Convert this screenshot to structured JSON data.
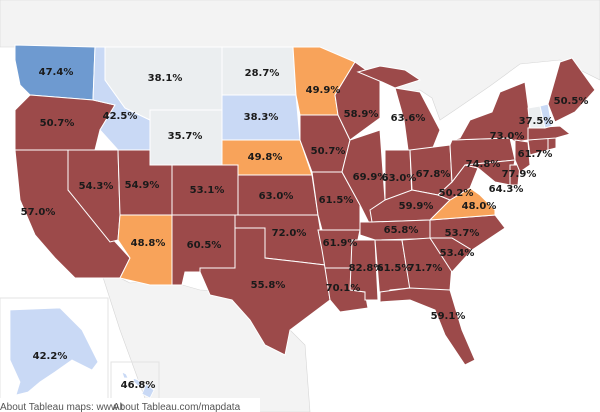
{
  "colors": {
    "dark_red": "#9c4a4a",
    "orange": "#f8a35a",
    "light_gray": "#ebeef0",
    "light_blue": "#c9d9f5",
    "mid_blue": "#6e9ad0",
    "border": "#ffffff",
    "neighbor": "#f3f3f3"
  },
  "states": [
    {
      "code": "WA",
      "value": "47.4%",
      "category": "mid_blue"
    },
    {
      "code": "OR",
      "value": "50.7%",
      "category": "dark_red"
    },
    {
      "code": "CA",
      "value": "57.0%",
      "category": "dark_red"
    },
    {
      "code": "NV",
      "value": "54.3%",
      "category": "dark_red"
    },
    {
      "code": "ID",
      "value": "42.5%",
      "category": "light_blue"
    },
    {
      "code": "MT",
      "value": "38.1%",
      "category": "light_gray"
    },
    {
      "code": "WY",
      "value": "35.7%",
      "category": "light_gray"
    },
    {
      "code": "UT",
      "value": "54.9%",
      "category": "dark_red"
    },
    {
      "code": "AZ",
      "value": "48.8%",
      "category": "orange"
    },
    {
      "code": "CO",
      "value": "53.1%",
      "category": "dark_red"
    },
    {
      "code": "NM",
      "value": "60.5%",
      "category": "dark_red"
    },
    {
      "code": "ND",
      "value": "28.7%",
      "category": "light_gray"
    },
    {
      "code": "SD",
      "value": "38.3%",
      "category": "light_blue"
    },
    {
      "code": "NE",
      "value": "49.8%",
      "category": "orange"
    },
    {
      "code": "KS",
      "value": "63.0%",
      "category": "dark_red"
    },
    {
      "code": "OK",
      "value": "72.0%",
      "category": "dark_red"
    },
    {
      "code": "TX",
      "value": "55.8%",
      "category": "dark_red"
    },
    {
      "code": "MN",
      "value": "49.9%",
      "category": "orange"
    },
    {
      "code": "IA",
      "value": "50.7%",
      "category": "dark_red"
    },
    {
      "code": "MO",
      "value": "61.5%",
      "category": "dark_red"
    },
    {
      "code": "AR",
      "value": "61.9%",
      "category": "dark_red"
    },
    {
      "code": "LA",
      "value": "70.1%",
      "category": "dark_red"
    },
    {
      "code": "WI",
      "value": "58.9%",
      "category": "dark_red"
    },
    {
      "code": "IL",
      "value": "69.9%",
      "category": "dark_red"
    },
    {
      "code": "MS",
      "value": "82.8%",
      "category": "dark_red"
    },
    {
      "code": "MI",
      "value": "63.6%",
      "category": "dark_red"
    },
    {
      "code": "IN",
      "value": "63.0%",
      "category": "dark_red"
    },
    {
      "code": "KY",
      "value": "59.9%",
      "category": "dark_red"
    },
    {
      "code": "TN",
      "value": "65.8%",
      "category": "dark_red"
    },
    {
      "code": "AL",
      "value": "61.5%",
      "category": "dark_red"
    },
    {
      "code": "OH",
      "value": "67.8%",
      "category": "dark_red"
    },
    {
      "code": "GA",
      "value": "71.7%",
      "category": "dark_red"
    },
    {
      "code": "FL",
      "value": "59.1%",
      "category": "dark_red"
    },
    {
      "code": "SC",
      "value": "53.4%",
      "category": "dark_red"
    },
    {
      "code": "NC",
      "value": "53.7%",
      "category": "dark_red"
    },
    {
      "code": "VA",
      "value": "48.0%",
      "category": "orange"
    },
    {
      "code": "WV",
      "value": "50.2%",
      "category": "dark_red"
    },
    {
      "code": "PA",
      "value": "74.8%",
      "category": "dark_red"
    },
    {
      "code": "NY",
      "value": "73.0%",
      "category": "dark_red"
    },
    {
      "code": "MD",
      "value": "64.3%",
      "category": "dark_red"
    },
    {
      "code": "NJ",
      "value": "77.9%",
      "category": "dark_red"
    },
    {
      "code": "CT",
      "value": "61.7%",
      "category": "dark_red"
    },
    {
      "code": "VT",
      "value": "37.5%",
      "category": "light_gray"
    },
    {
      "code": "NH",
      "value": "",
      "category": "light_blue"
    },
    {
      "code": "ME",
      "value": "50.5%",
      "category": "dark_red"
    },
    {
      "code": "MA",
      "value": "",
      "category": "dark_red"
    },
    {
      "code": "RI",
      "value": "",
      "category": "dark_red"
    },
    {
      "code": "DE",
      "value": "",
      "category": "dark_red"
    },
    {
      "code": "AK",
      "value": "42.2%",
      "category": "light_blue"
    },
    {
      "code": "HI",
      "value": "46.8%",
      "category": "light_blue"
    }
  ],
  "attribution": {
    "left_text": "About Tableau maps: www.t",
    "right_text": "About Tableau.com/mapdata"
  }
}
